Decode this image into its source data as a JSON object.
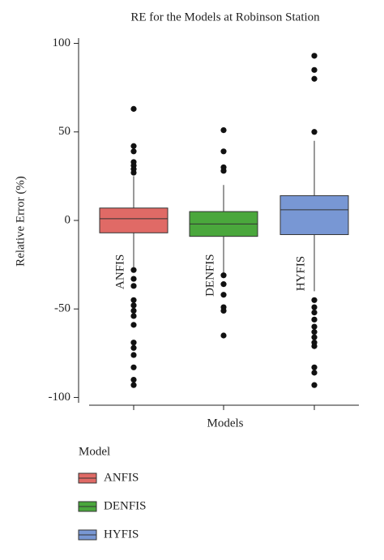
{
  "chart_data": {
    "type": "box",
    "title": "RE for the Models at Robinson Station",
    "x_label": "Models",
    "y_label": "Relative Error (%)",
    "ylim": [
      -103,
      103
    ],
    "yticks": [
      100,
      50,
      0,
      -50,
      -100
    ],
    "legend_title": "Model",
    "series": [
      {
        "name": "ANFIS",
        "color": "#e06a66",
        "whisker_low": -27,
        "q1": -7,
        "median": 1,
        "q3": 7,
        "whisker_high": 25,
        "outliers": [
          63,
          42,
          39,
          33,
          31,
          29,
          27,
          -28,
          -33,
          -37,
          -45,
          -48,
          -51,
          -54,
          -59,
          -69,
          -72,
          -76,
          -83,
          -90,
          -93
        ]
      },
      {
        "name": "DENFIS",
        "color": "#4aa73c",
        "whisker_low": -30,
        "q1": -9,
        "median": -2,
        "q3": 5,
        "whisker_high": 20,
        "outliers": [
          51,
          39,
          30,
          28,
          -31,
          -36,
          -42,
          -49,
          -51,
          -65
        ]
      },
      {
        "name": "HYFIS",
        "color": "#7897d4",
        "whisker_low": -40,
        "q1": -8,
        "median": 6,
        "q3": 14,
        "whisker_high": 45,
        "outliers": [
          93,
          85,
          80,
          50,
          -45,
          -49,
          -52,
          -56,
          -60,
          -63,
          -66,
          -69,
          -71,
          -83,
          -86,
          -93
        ]
      }
    ]
  }
}
